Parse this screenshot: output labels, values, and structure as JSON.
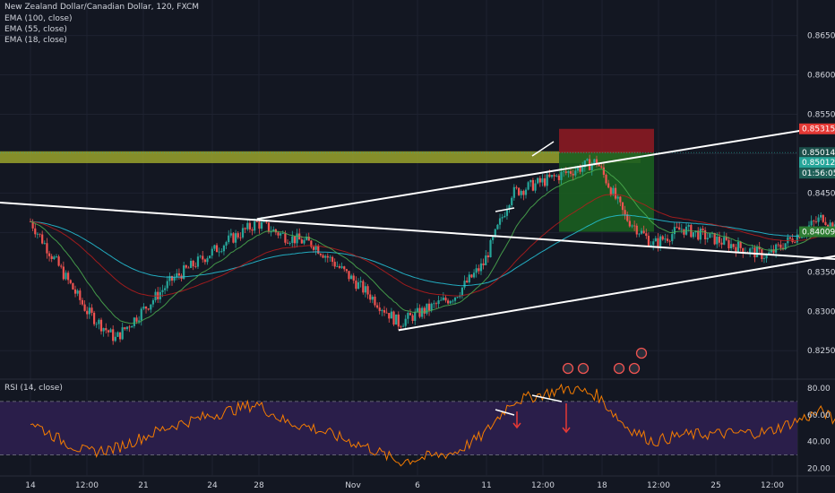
{
  "header": {
    "symbol_line": "New Zealand Dollar/Canadian Dollar, 120, FXCM",
    "indicators": [
      "EMA (100, close)",
      "EMA (55, close)",
      "EMA (18, close)"
    ]
  },
  "rsi_panel": {
    "label": "RSI (14, close)"
  },
  "colors": {
    "background": "#131722",
    "up_candle": "#26a69a",
    "down_candle": "#ef5350",
    "ema100": "#26c6da",
    "ema55": "#b71c1c",
    "ema18": "#4caf50",
    "resistance_zone": "#9aa32b",
    "stop_zone": "#8b1a22",
    "target_zone": "#1b5e20",
    "rsi_line": "#f57c00",
    "rsi_band": "#2a1e4a",
    "trendline": "#ffffff",
    "price_tag_red": "#e53935",
    "price_tag_green": "#2e7d32"
  },
  "chart_data": [
    {
      "type": "candlestick",
      "title": "New Zealand Dollar/Canadian Dollar, 120, FXCM",
      "y_axis_ticks": [
        "0.86500",
        "0.86000",
        "0.85500",
        "0.85000",
        "0.84500",
        "0.84000",
        "0.83500",
        "0.83000",
        "0.82500"
      ],
      "x_axis_ticks": [
        "14",
        "12:00",
        "21",
        "24",
        "28",
        "Nov",
        "6",
        "11",
        "12:00",
        "18",
        "12:00",
        "25",
        "12:00"
      ],
      "ylim": [
        0.8215,
        0.8695
      ],
      "price_tags": [
        {
          "value": "0.85315",
          "kind": "stop"
        },
        {
          "value": "0.85014",
          "kind": "current"
        },
        {
          "value": "0.85012",
          "kind": "last"
        },
        {
          "value": "01:56:05",
          "kind": "countdown"
        },
        {
          "value": "0.84009",
          "kind": "target"
        }
      ],
      "price_path_anchors": [
        {
          "x": "Oct 14",
          "price": 0.8414
        },
        {
          "x": "Oct 16",
          "price": 0.83
        },
        {
          "x": "Oct 17",
          "price": 0.8265
        },
        {
          "x": "Oct 19",
          "price": 0.834
        },
        {
          "x": "Oct 21",
          "price": 0.839
        },
        {
          "x": "Oct 22",
          "price": 0.8412
        },
        {
          "x": "Oct 23",
          "price": 0.8395
        },
        {
          "x": "Oct 24",
          "price": 0.8385
        },
        {
          "x": "Oct 26",
          "price": 0.832
        },
        {
          "x": "Oct 27",
          "price": 0.8285
        },
        {
          "x": "Oct 29",
          "price": 0.832
        },
        {
          "x": "Oct 30",
          "price": 0.836
        },
        {
          "x": "Oct 31",
          "price": 0.845
        },
        {
          "x": "Nov 3",
          "price": 0.849
        },
        {
          "x": "Nov 4",
          "price": 0.842
        },
        {
          "x": "Nov 5",
          "price": 0.8385
        },
        {
          "x": "Nov 6",
          "price": 0.8405
        },
        {
          "x": "Nov 9",
          "price": 0.837
        },
        {
          "x": "Nov 11",
          "price": 0.842
        },
        {
          "x": "Nov 12",
          "price": 0.838
        },
        {
          "x": "Nov 13",
          "price": 0.8488
        },
        {
          "x": "Nov 14",
          "price": 0.8501
        }
      ],
      "trendlines": [
        {
          "name": "falling line",
          "from": {
            "x": "Oct 10",
            "price": 0.8445
          },
          "to": {
            "x": "Nov 21",
            "price": 0.8343
          }
        },
        {
          "name": "upper channel",
          "from": {
            "x": "Oct 22",
            "price": 0.8417
          },
          "to": {
            "x": "Nov 23",
            "price": 0.8604
          }
        },
        {
          "name": "lower channel",
          "from": {
            "x": "Oct 27",
            "price": 0.8276
          },
          "to": {
            "x": "Nov 26",
            "price": 0.8459
          }
        }
      ],
      "zones": [
        {
          "name": "resistance",
          "low": 0.8488,
          "high": 0.8503
        },
        {
          "name": "stop",
          "low": 0.8501,
          "high": 0.85315
        },
        {
          "name": "target",
          "low": 0.84009,
          "high": 0.8501
        }
      ]
    },
    {
      "type": "line",
      "title": "RSI (14, close)",
      "y_axis_ticks": [
        "80.00",
        "60.00",
        "40.00",
        "20.00"
      ],
      "ylim": [
        15,
        86
      ],
      "band": [
        30,
        70
      ],
      "rsi_anchors": [
        {
          "x": "Oct 14",
          "value": 55
        },
        {
          "x": "Oct 15",
          "value": 42
        },
        {
          "x": "Oct 16",
          "value": 32
        },
        {
          "x": "Oct 17",
          "value": 35
        },
        {
          "x": "Oct 19",
          "value": 52
        },
        {
          "x": "Oct 21",
          "value": 63
        },
        {
          "x": "Oct 22",
          "value": 68
        },
        {
          "x": "Oct 23",
          "value": 55
        },
        {
          "x": "Oct 24",
          "value": 50
        },
        {
          "x": "Oct 26",
          "value": 35
        },
        {
          "x": "Oct 27",
          "value": 25
        },
        {
          "x": "Oct 29",
          "value": 32
        },
        {
          "x": "Oct 30",
          "value": 45
        },
        {
          "x": "Oct 31",
          "value": 70
        },
        {
          "x": "Nov 2",
          "value": 80
        },
        {
          "x": "Nov 3",
          "value": 75
        },
        {
          "x": "Nov 4",
          "value": 52
        },
        {
          "x": "Nov 5",
          "value": 40
        },
        {
          "x": "Nov 6",
          "value": 45
        },
        {
          "x": "Nov 9",
          "value": 47
        },
        {
          "x": "Nov 11",
          "value": 63
        },
        {
          "x": "Nov 12",
          "value": 42
        },
        {
          "x": "Nov 13",
          "value": 82
        },
        {
          "x": "Nov 14",
          "value": 74
        }
      ]
    }
  ]
}
